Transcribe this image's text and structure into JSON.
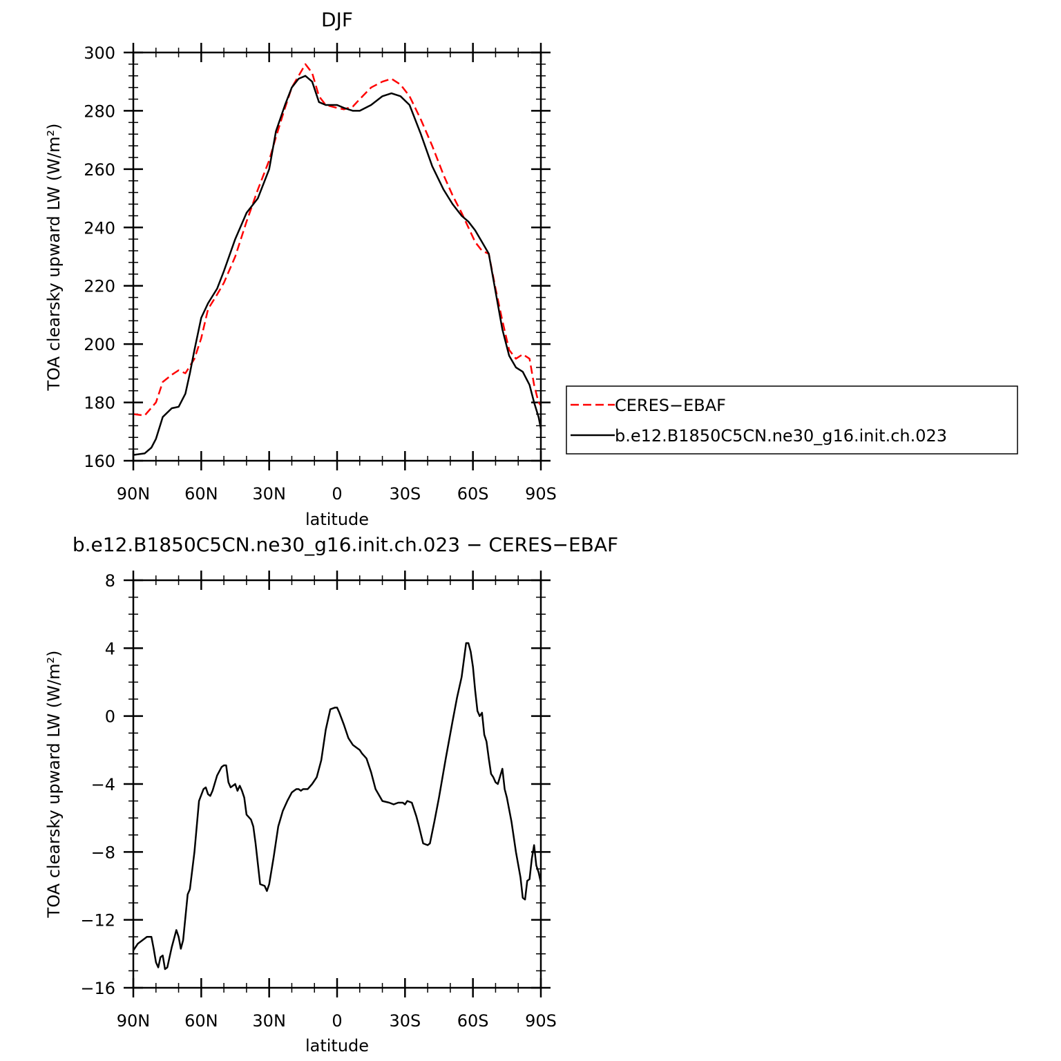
{
  "chart_data": [
    {
      "type": "line",
      "title": "DJF",
      "xlabel": "latitude",
      "ylabel": "TOA clearsky upward LW (W/m²)",
      "xlim": [
        -90,
        90
      ],
      "ylim": [
        160,
        300
      ],
      "x_ticks": [
        -90,
        -60,
        -30,
        0,
        30,
        60,
        90
      ],
      "x_tick_labels": [
        "90N",
        "60N",
        "30N",
        "0",
        "30S",
        "60S",
        "90S"
      ],
      "y_ticks": [
        160,
        180,
        200,
        220,
        240,
        260,
        280,
        300
      ],
      "y_tick_labels": [
        "160",
        "180",
        "200",
        "220",
        "240",
        "260",
        "280",
        "300"
      ],
      "legend": {
        "placement": "right-outside"
      },
      "series": [
        {
          "name": "CERES−EBAF",
          "color": "#ff0000",
          "style": "dashed",
          "x": [
            -90,
            -85,
            -80,
            -77,
            -73,
            -70,
            -67,
            -63,
            -60,
            -57,
            -53,
            -50,
            -45,
            -40,
            -35,
            -30,
            -27,
            -23,
            -20,
            -17,
            -14,
            -11,
            -8,
            -5,
            0,
            3,
            7,
            10,
            15,
            20,
            24,
            28,
            32,
            37,
            42,
            47,
            51,
            55,
            58,
            61,
            64,
            67,
            70,
            73,
            76,
            79,
            82,
            85,
            87,
            89,
            90
          ],
          "y": [
            176,
            175.5,
            180,
            187,
            189.5,
            191,
            190,
            195,
            202,
            212,
            217,
            221,
            230,
            242,
            253,
            263,
            271,
            281,
            288,
            292,
            296,
            293,
            285,
            282,
            281,
            280.5,
            281.5,
            284,
            288,
            290,
            291,
            289,
            285,
            277,
            268,
            258,
            251,
            245,
            240,
            235,
            232,
            231,
            219,
            208,
            198,
            195,
            196.5,
            195,
            186,
            180,
            179
          ]
        },
        {
          "name": "b.e12.B1850C5CN.ne30_g16.init.ch.023",
          "color": "#000000",
          "style": "solid",
          "x": [
            -90,
            -85,
            -82,
            -80,
            -77,
            -73,
            -70,
            -67,
            -65,
            -63,
            -60,
            -57,
            -53,
            -50,
            -45,
            -40,
            -35,
            -30,
            -27,
            -23,
            -20,
            -17,
            -14,
            -11,
            -8,
            -5,
            0,
            3,
            7,
            10,
            15,
            20,
            24,
            28,
            32,
            37,
            42,
            47,
            51,
            55,
            58,
            61,
            64,
            67,
            70,
            73,
            76,
            79,
            82,
            85,
            87,
            89,
            90
          ],
          "y": [
            162,
            162.5,
            164.5,
            167.5,
            175,
            178,
            178.5,
            183,
            190,
            198,
            209,
            214,
            219,
            225,
            236,
            245,
            250,
            260,
            273,
            282,
            288,
            291,
            292,
            290,
            283,
            282,
            282,
            281,
            280,
            280,
            282,
            285,
            286,
            285,
            282,
            272,
            261,
            253,
            248,
            244,
            242,
            239,
            235,
            231,
            218,
            205,
            196,
            192,
            190.5,
            186,
            180,
            175,
            171
          ]
        }
      ]
    },
    {
      "type": "line",
      "title": "b.e12.B1850C5CN.ne30_g16.init.ch.023 − CERES−EBAF",
      "xlabel": "latitude",
      "ylabel": "TOA clearsky upward LW (W/m²)",
      "xlim": [
        -90,
        90
      ],
      "ylim": [
        -16,
        8
      ],
      "x_ticks": [
        -90,
        -60,
        -30,
        0,
        30,
        60,
        90
      ],
      "x_tick_labels": [
        "90N",
        "60N",
        "30N",
        "0",
        "30S",
        "60S",
        "90S"
      ],
      "y_ticks": [
        -16,
        -12,
        -8,
        -4,
        0,
        4,
        8
      ],
      "y_tick_labels": [
        "−16",
        "−12",
        "−8",
        "−4",
        "0",
        "4",
        "8"
      ],
      "series": [
        {
          "name": "",
          "color": "#000000",
          "style": "solid",
          "x": [
            -90,
            -88,
            -86,
            -84,
            -82,
            -81,
            -80,
            -79,
            -78,
            -77,
            -76,
            -75,
            -73,
            -71,
            -70,
            -69,
            -68,
            -66,
            -65,
            -63,
            -61,
            -59,
            -58,
            -57,
            -56,
            -55,
            -53,
            -51,
            -50,
            -49,
            -48,
            -47,
            -46,
            -45,
            -44,
            -43,
            -42,
            -41,
            -40,
            -38,
            -37,
            -36,
            -34,
            -32,
            -31,
            -30,
            -28,
            -26,
            -24,
            -22,
            -20,
            -19,
            -18,
            -17,
            -16,
            -15,
            -13,
            -11,
            -9,
            -7,
            -5,
            -3,
            -1,
            0,
            1,
            3,
            5,
            7,
            9,
            10,
            11,
            13,
            15,
            17,
            20,
            23,
            25,
            27,
            29,
            30,
            31,
            33,
            35,
            36,
            38,
            40,
            41,
            43,
            45,
            48,
            51,
            53,
            55,
            57,
            58,
            59,
            60,
            61,
            62,
            63,
            64,
            65,
            66,
            67,
            68,
            69,
            70,
            71,
            73,
            74,
            75,
            77,
            79,
            81,
            82,
            83,
            84,
            85,
            86,
            87,
            88,
            89,
            90
          ],
          "y": [
            -13.8,
            -13.4,
            -13.2,
            -13,
            -13,
            -13.7,
            -14.5,
            -14.8,
            -14.2,
            -14.1,
            -14.9,
            -14.8,
            -13.6,
            -12.6,
            -13,
            -13.7,
            -13.2,
            -10.5,
            -10.2,
            -8,
            -5,
            -4.3,
            -4.2,
            -4.6,
            -4.7,
            -4.4,
            -3.5,
            -3.0,
            -2.9,
            -2.9,
            -3.9,
            -4.2,
            -4.1,
            -4.0,
            -4.4,
            -4.1,
            -4.4,
            -4.8,
            -5.8,
            -6.1,
            -6.5,
            -7.5,
            -9.9,
            -10.0,
            -10.3,
            -9.9,
            -8.3,
            -6.5,
            -5.6,
            -5,
            -4.5,
            -4.4,
            -4.3,
            -4.3,
            -4.4,
            -4.3,
            -4.3,
            -4.0,
            -3.6,
            -2.6,
            -0.8,
            0.4,
            0.5,
            0.5,
            0.2,
            -0.5,
            -1.3,
            -1.7,
            -1.9,
            -2.0,
            -2.2,
            -2.5,
            -3.3,
            -4.3,
            -5,
            -5.1,
            -5.2,
            -5.1,
            -5.1,
            -5.2,
            -5.0,
            -5.1,
            -5.9,
            -6.4,
            -7.5,
            -7.6,
            -7.5,
            -6.2,
            -4.8,
            -2.5,
            -0.3,
            1.1,
            2.3,
            4.3,
            4.3,
            3.8,
            2.9,
            1.5,
            0.3,
            0.0,
            0.2,
            -1.1,
            -1.5,
            -2.5,
            -3.4,
            -3.6,
            -3.9,
            -4.0,
            -3.1,
            -4.3,
            -4.8,
            -6.2,
            -8.0,
            -9.5,
            -10.7,
            -10.8,
            -9.7,
            -9.6,
            -8.4,
            -7.6,
            -8.8,
            -9.2,
            -9.8
          ]
        }
      ]
    }
  ]
}
